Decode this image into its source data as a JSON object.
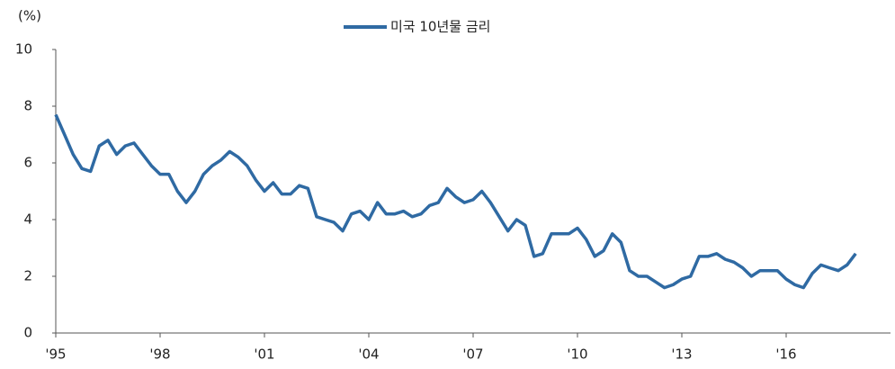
{
  "chart_data": {
    "type": "line",
    "y_unit": "(%)",
    "categories": [
      "'95",
      null,
      null,
      null,
      null,
      null,
      null,
      null,
      null,
      null,
      null,
      null,
      "'98",
      null,
      null,
      null,
      null,
      null,
      null,
      null,
      null,
      null,
      null,
      null,
      "'01",
      null,
      null,
      null,
      null,
      null,
      null,
      null,
      null,
      null,
      null,
      null,
      "'04",
      null,
      null,
      null,
      null,
      null,
      null,
      null,
      null,
      null,
      null,
      null,
      "'07",
      null,
      null,
      null,
      null,
      null,
      null,
      null,
      null,
      null,
      null,
      null,
      "'10",
      null,
      null,
      null,
      null,
      null,
      null,
      null,
      null,
      null,
      null,
      null,
      "'13",
      null,
      null,
      null,
      null,
      null,
      null,
      null,
      null,
      null,
      null,
      null,
      "'16",
      null,
      null,
      null,
      null,
      null,
      null,
      null,
      null
    ],
    "series": [
      {
        "name": "미국 10년물 금리",
        "color": "#2f6aa3",
        "values": [
          7.7,
          7.0,
          6.3,
          5.8,
          5.7,
          6.6,
          6.8,
          6.3,
          6.6,
          6.7,
          6.3,
          5.9,
          5.6,
          5.6,
          5.0,
          4.6,
          5.0,
          5.6,
          5.9,
          6.1,
          6.4,
          6.2,
          5.9,
          5.4,
          5.0,
          5.3,
          4.9,
          4.9,
          5.2,
          5.1,
          4.1,
          4.0,
          3.9,
          3.6,
          4.2,
          4.3,
          4.0,
          4.6,
          4.2,
          4.2,
          4.3,
          4.1,
          4.2,
          4.5,
          4.6,
          5.1,
          4.8,
          4.6,
          4.7,
          5.0,
          4.6,
          4.1,
          3.6,
          4.0,
          3.8,
          2.7,
          2.8,
          3.5,
          3.5,
          3.5,
          3.7,
          3.3,
          2.7,
          2.9,
          3.5,
          3.2,
          2.2,
          2.0,
          2.0,
          1.8,
          1.6,
          1.7,
          1.9,
          2.0,
          2.7,
          2.7,
          2.8,
          2.6,
          2.5,
          2.3,
          2.0,
          2.2,
          2.2,
          2.2,
          1.9,
          1.7,
          1.6,
          2.1,
          2.4,
          2.3,
          2.2,
          2.4,
          2.8
        ]
      }
    ],
    "ylim": [
      0,
      10
    ],
    "yticks": [
      0,
      2,
      4,
      6,
      8,
      10
    ],
    "legend": "top"
  }
}
